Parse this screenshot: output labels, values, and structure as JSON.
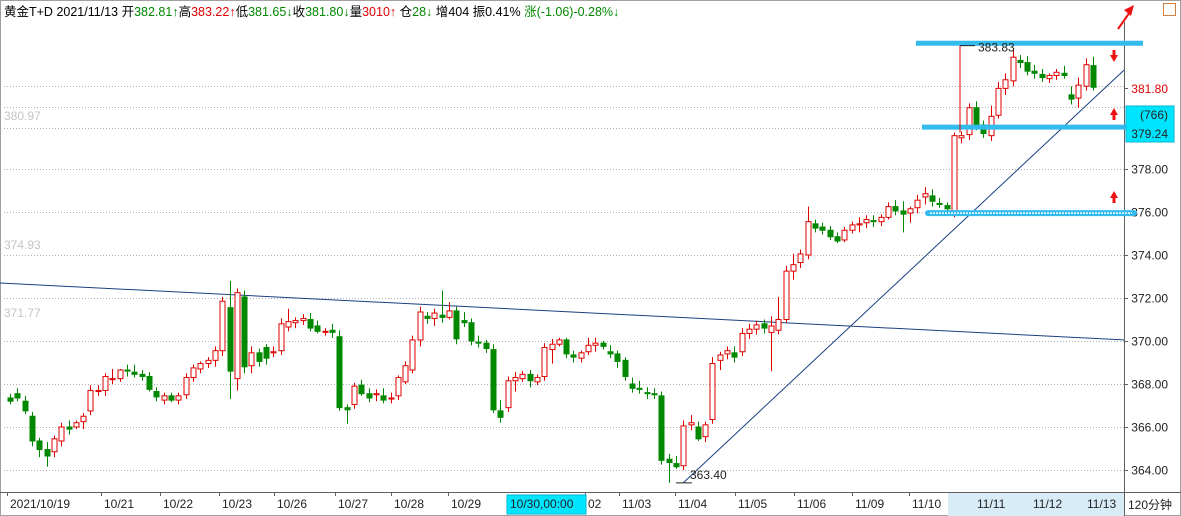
{
  "header": {
    "symbol": "黄金T+D",
    "date": "2021/11/13",
    "open_label": "开",
    "open_value": "382.81↑",
    "high_label": "高",
    "high_value": "383.22↑",
    "low_label": "低",
    "low_value": "381.65↓",
    "close_label": "收",
    "close_value": "381.80↓",
    "volume_label": "量",
    "volume_value": "3010↑",
    "position_label": "仓",
    "position_value": "28↓",
    "increase_label": "增",
    "increase_value": "404",
    "amplitude_label": "振",
    "amplitude_value": "0.41%",
    "change_label": "涨",
    "change_value": "(-1.06)-0.28%↓"
  },
  "colors": {
    "up": "#e00000",
    "down": "#008800",
    "highlight": "#33bbee",
    "trendline": "#1a3f80",
    "grid": "#b0b0b0"
  },
  "axis": {
    "y_ticks": [
      "364.00",
      "366.00",
      "368.00",
      "370.00",
      "372.00",
      "374.00",
      "376.00",
      "378.00"
    ],
    "current_price": "381.80",
    "cursor_change": "(766)",
    "cursor_price": "379.24",
    "left_labels": [
      "380.97",
      "374.93",
      "371.77"
    ],
    "period_label": "120分钟"
  },
  "x_axis": {
    "labels": [
      "2021/10/19",
      "10/21",
      "10/22",
      "10/23",
      "10/26",
      "10/27",
      "10/28",
      "10/29",
      "02",
      "11/03",
      "11/04",
      "11/05",
      "11/06",
      "11/09",
      "11/10",
      "11/11",
      "11/12",
      "11/13"
    ],
    "highlight_label": "10/30,00:00"
  },
  "annotations": {
    "max_price": "383.83",
    "min_price": "363.40"
  },
  "icons": {
    "arrow": "red-up-right-arrow-icon",
    "corner": "corner-square-icon"
  },
  "chart_data": {
    "type": "candlestick",
    "title": "",
    "ylim": [
      363,
      384.5
    ],
    "candles": [
      [
        367.35,
        367.55,
        367.05,
        367.2
      ],
      [
        367.55,
        367.8,
        367.2,
        367.35
      ],
      [
        367.2,
        367.45,
        366.6,
        366.75
      ],
      [
        366.5,
        366.7,
        365.1,
        365.35
      ],
      [
        365.35,
        365.5,
        364.6,
        364.95
      ],
      [
        364.95,
        365.3,
        364.15,
        364.65
      ],
      [
        364.85,
        365.6,
        364.6,
        365.45
      ],
      [
        365.35,
        366.2,
        365.1,
        366.0
      ],
      [
        366.0,
        366.3,
        365.65,
        365.9
      ],
      [
        366.0,
        366.3,
        365.9,
        366.2
      ],
      [
        366.25,
        366.65,
        365.9,
        366.5
      ],
      [
        366.75,
        367.95,
        366.55,
        367.7
      ],
      [
        367.65,
        367.95,
        367.45,
        367.7
      ],
      [
        367.7,
        368.5,
        367.45,
        368.35
      ],
      [
        368.2,
        368.7,
        368.0,
        368.25
      ],
      [
        368.25,
        368.7,
        368.1,
        368.65
      ],
      [
        368.65,
        368.9,
        368.35,
        368.6
      ],
      [
        368.55,
        368.9,
        368.3,
        368.45
      ],
      [
        368.45,
        368.65,
        368.15,
        368.35
      ],
      [
        368.35,
        368.55,
        367.65,
        367.75
      ],
      [
        367.65,
        367.85,
        367.2,
        367.4
      ],
      [
        367.25,
        367.6,
        367.05,
        367.45
      ],
      [
        367.45,
        367.6,
        367.15,
        367.25
      ],
      [
        367.25,
        367.6,
        367.05,
        367.45
      ],
      [
        367.5,
        368.5,
        367.3,
        368.3
      ],
      [
        368.3,
        368.9,
        368.1,
        368.75
      ],
      [
        368.7,
        369.05,
        368.5,
        368.95
      ],
      [
        368.95,
        369.25,
        368.75,
        369.1
      ],
      [
        369.1,
        369.75,
        368.8,
        369.55
      ],
      [
        369.55,
        372.05,
        369.3,
        371.85
      ],
      [
        371.55,
        372.8,
        367.3,
        368.6
      ],
      [
        368.25,
        372.45,
        367.7,
        372.25
      ],
      [
        372.05,
        372.35,
        368.5,
        368.8
      ],
      [
        368.85,
        369.75,
        368.5,
        369.45
      ],
      [
        369.45,
        369.65,
        368.8,
        369.05
      ],
      [
        369.7,
        369.85,
        368.9,
        369.2
      ],
      [
        369.45,
        369.75,
        369.25,
        369.5
      ],
      [
        369.55,
        371.05,
        369.35,
        370.8
      ],
      [
        370.65,
        371.5,
        370.45,
        370.9
      ],
      [
        370.85,
        371.1,
        370.6,
        370.95
      ],
      [
        370.95,
        371.25,
        370.75,
        371.05
      ],
      [
        371.0,
        371.3,
        370.45,
        370.6
      ],
      [
        370.7,
        370.95,
        370.35,
        370.45
      ],
      [
        370.45,
        370.6,
        370.25,
        370.45
      ],
      [
        370.5,
        370.8,
        370.15,
        370.4
      ],
      [
        370.2,
        370.5,
        366.75,
        366.9
      ],
      [
        366.9,
        367.05,
        366.15,
        366.8
      ],
      [
        367.05,
        368.05,
        366.85,
        367.9
      ],
      [
        367.95,
        368.2,
        367.45,
        367.55
      ],
      [
        367.55,
        367.8,
        367.15,
        367.35
      ],
      [
        367.5,
        367.75,
        367.2,
        367.55
      ],
      [
        367.45,
        367.8,
        367.1,
        367.25
      ],
      [
        367.3,
        367.6,
        367.1,
        367.35
      ],
      [
        367.45,
        368.4,
        367.25,
        368.3
      ],
      [
        368.1,
        369.05,
        368.0,
        368.85
      ],
      [
        368.65,
        370.25,
        368.5,
        370.05
      ],
      [
        370.05,
        371.6,
        369.75,
        371.35
      ],
      [
        371.15,
        371.35,
        370.8,
        371.05
      ],
      [
        371.05,
        371.5,
        370.7,
        371.3
      ],
      [
        371.2,
        372.35,
        370.85,
        371.1
      ],
      [
        371.1,
        371.8,
        371.0,
        371.4
      ],
      [
        371.4,
        371.6,
        369.85,
        370.1
      ],
      [
        370.95,
        371.35,
        370.65,
        370.85
      ],
      [
        370.85,
        371.05,
        369.8,
        370.0
      ],
      [
        369.95,
        370.25,
        369.7,
        369.9
      ],
      [
        369.9,
        370.05,
        369.45,
        369.65
      ],
      [
        369.6,
        369.85,
        366.65,
        366.8
      ],
      [
        366.75,
        367.25,
        366.2,
        366.45
      ],
      [
        366.9,
        368.35,
        366.7,
        368.15
      ],
      [
        368.15,
        368.55,
        367.65,
        368.3
      ],
      [
        368.25,
        368.6,
        368.1,
        368.45
      ],
      [
        368.45,
        368.65,
        367.85,
        368.15
      ],
      [
        368.1,
        368.45,
        367.95,
        368.3
      ],
      [
        368.35,
        369.9,
        368.15,
        369.7
      ],
      [
        369.6,
        370.1,
        368.95,
        369.85
      ],
      [
        369.85,
        370.15,
        369.75,
        370.05
      ],
      [
        370.05,
        370.15,
        369.2,
        369.4
      ],
      [
        369.35,
        369.55,
        369.0,
        369.25
      ],
      [
        369.2,
        369.55,
        369.0,
        369.45
      ],
      [
        369.5,
        370.15,
        369.35,
        369.8
      ],
      [
        369.8,
        370.15,
        369.5,
        369.9
      ],
      [
        369.9,
        370.0,
        369.6,
        369.75
      ],
      [
        369.5,
        369.8,
        369.2,
        369.4
      ],
      [
        369.4,
        369.55,
        368.75,
        369.05
      ],
      [
        369.1,
        369.25,
        368.15,
        368.35
      ],
      [
        368.0,
        368.3,
        367.6,
        367.8
      ],
      [
        367.8,
        368.15,
        367.55,
        367.75
      ],
      [
        367.6,
        367.85,
        367.3,
        367.55
      ],
      [
        367.55,
        367.8,
        367.3,
        367.5
      ],
      [
        367.45,
        367.65,
        364.25,
        364.45
      ],
      [
        364.5,
        364.75,
        363.4,
        364.35
      ],
      [
        364.3,
        364.65,
        364.05,
        364.15
      ],
      [
        364.2,
        366.3,
        364.0,
        366.05
      ],
      [
        366.1,
        366.55,
        365.85,
        366.2
      ],
      [
        366.0,
        366.25,
        365.35,
        365.45
      ],
      [
        365.55,
        366.25,
        365.3,
        366.1
      ],
      [
        366.35,
        369.25,
        366.15,
        368.95
      ],
      [
        369.1,
        369.5,
        368.65,
        369.35
      ],
      [
        369.4,
        369.75,
        369.15,
        369.55
      ],
      [
        369.45,
        369.75,
        369.0,
        369.25
      ],
      [
        369.5,
        370.6,
        369.3,
        370.35
      ],
      [
        370.35,
        370.8,
        370.1,
        370.55
      ],
      [
        370.55,
        370.95,
        370.3,
        370.75
      ],
      [
        370.8,
        371.0,
        370.35,
        370.6
      ],
      [
        370.4,
        371.15,
        368.6,
        370.7
      ],
      [
        370.5,
        372.05,
        370.3,
        371.0
      ],
      [
        371.0,
        373.5,
        370.85,
        373.25
      ],
      [
        373.25,
        374.05,
        372.85,
        373.55
      ],
      [
        373.65,
        374.25,
        373.4,
        374.05
      ],
      [
        374.0,
        376.25,
        373.8,
        375.55
      ],
      [
        375.45,
        375.65,
        375.05,
        375.25
      ],
      [
        375.3,
        375.5,
        374.95,
        375.15
      ],
      [
        375.15,
        375.35,
        374.7,
        374.85
      ],
      [
        374.85,
        375.05,
        374.55,
        374.65
      ],
      [
        374.7,
        375.3,
        374.6,
        375.15
      ],
      [
        375.15,
        375.55,
        375.0,
        375.4
      ],
      [
        375.4,
        375.75,
        375.05,
        375.45
      ],
      [
        375.5,
        375.85,
        375.25,
        375.65
      ],
      [
        375.6,
        375.85,
        375.3,
        375.55
      ],
      [
        375.55,
        375.9,
        375.35,
        375.75
      ],
      [
        375.75,
        376.45,
        375.65,
        376.25
      ],
      [
        376.25,
        376.55,
        375.85,
        376.05
      ],
      [
        376.05,
        376.5,
        375.05,
        375.9
      ],
      [
        375.95,
        376.25,
        375.5,
        376.15
      ],
      [
        376.2,
        376.8,
        375.95,
        376.55
      ],
      [
        376.7,
        377.15,
        376.35,
        376.85
      ],
      [
        376.75,
        377.05,
        376.25,
        376.5
      ],
      [
        376.4,
        376.65,
        376.2,
        376.35
      ],
      [
        376.3,
        376.45,
        376.0,
        376.15
      ],
      [
        375.95,
        379.7,
        375.75,
        379.55
      ],
      [
        379.45,
        379.75,
        379.2,
        379.55
      ],
      [
        379.6,
        381.05,
        379.35,
        380.85
      ],
      [
        380.85,
        381.15,
        379.8,
        380.05
      ],
      [
        380.05,
        380.25,
        379.45,
        379.65
      ],
      [
        379.55,
        380.95,
        379.3,
        380.45
      ],
      [
        380.5,
        382.05,
        380.35,
        381.75
      ],
      [
        381.75,
        382.45,
        381.45,
        382.15
      ],
      [
        382.1,
        383.6,
        381.85,
        383.2
      ],
      [
        383.05,
        383.3,
        382.7,
        382.95
      ],
      [
        382.95,
        383.25,
        382.35,
        382.55
      ],
      [
        382.55,
        382.85,
        382.2,
        382.45
      ],
      [
        382.4,
        382.65,
        382.05,
        382.25
      ],
      [
        382.2,
        382.45,
        382.0,
        382.35
      ],
      [
        382.35,
        382.65,
        382.15,
        382.5
      ],
      [
        382.45,
        382.8,
        382.2,
        382.35
      ],
      [
        381.45,
        381.85,
        381.0,
        381.25
      ],
      [
        381.3,
        382.25,
        380.85,
        381.9
      ],
      [
        381.85,
        383.15,
        381.65,
        382.85
      ],
      [
        382.81,
        383.22,
        381.65,
        381.8
      ]
    ],
    "trendlines": [
      {
        "name": "falling-trendline",
        "from": [
          0,
          372.7
        ],
        "to": [
          163,
          370.05
        ]
      },
      {
        "name": "rising-trendline",
        "from": [
          92,
          363.4
        ],
        "to": [
          163,
          382.6
        ]
      }
    ],
    "horizontal_levels": [
      383.85,
      379.95,
      375.95
    ]
  }
}
